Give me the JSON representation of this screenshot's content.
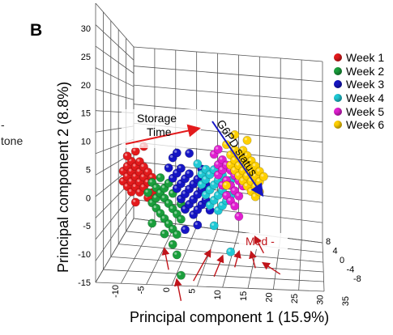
{
  "panel_label": "B",
  "side_text": [
    "-",
    "tone"
  ],
  "chart_data": {
    "type": "scatter",
    "projection": "3d",
    "xlabel": "Principal component 1 (15.9%)",
    "ylabel": "Principal component 2 (8.8%)",
    "xticks": [
      -10,
      -5,
      0,
      5,
      10,
      15,
      20,
      25,
      30,
      35
    ],
    "yticks": [
      -15,
      -10,
      -5,
      0,
      5,
      10,
      15,
      20,
      25,
      30
    ],
    "zticks": [
      8,
      4,
      0,
      -4,
      -8
    ],
    "xlim": [
      -13,
      37
    ],
    "ylim": [
      -15,
      33
    ],
    "zlim": [
      -8,
      8
    ],
    "grid": true,
    "legend_position": "right",
    "series": [
      {
        "name": "Week 1",
        "color": "#e31a1c",
        "points": [
          [
            -13,
            5
          ],
          [
            -13,
            3
          ],
          [
            -12,
            6
          ],
          [
            -12,
            2
          ],
          [
            -12,
            4
          ],
          [
            -11,
            7
          ],
          [
            -11,
            3
          ],
          [
            -11,
            5
          ],
          [
            -11,
            1
          ],
          [
            -10,
            6
          ],
          [
            -10,
            4
          ],
          [
            -10,
            2
          ],
          [
            -9,
            5
          ],
          [
            -9,
            3
          ],
          [
            -9,
            1
          ],
          [
            -9,
            7
          ],
          [
            -8,
            4
          ],
          [
            -8,
            2
          ],
          [
            -8,
            6
          ],
          [
            -7,
            3
          ],
          [
            -7,
            5
          ],
          [
            -6,
            1
          ],
          [
            -6,
            4
          ],
          [
            -12,
            8
          ],
          [
            -10,
            9
          ],
          [
            -8,
            10
          ],
          [
            -7,
            0
          ],
          [
            -10,
            -1
          ]
        ]
      },
      {
        "name": "Week 2",
        "color": "#1a9e3c",
        "points": [
          [
            -7,
            1
          ],
          [
            -6,
            3
          ],
          [
            -6,
            -1
          ],
          [
            -5,
            2
          ],
          [
            -5,
            0
          ],
          [
            -5,
            -2
          ],
          [
            -4,
            4
          ],
          [
            -4,
            1
          ],
          [
            -4,
            -3
          ],
          [
            -3,
            2
          ],
          [
            -3,
            0
          ],
          [
            -3,
            -4
          ],
          [
            -2,
            3
          ],
          [
            -2,
            -1
          ],
          [
            -2,
            -5
          ],
          [
            -1,
            1
          ],
          [
            -1,
            -2
          ],
          [
            -1,
            -6
          ],
          [
            0,
            2
          ],
          [
            0,
            -3
          ],
          [
            0,
            -7
          ],
          [
            1,
            -1
          ],
          [
            1,
            -4
          ],
          [
            1,
            0
          ],
          [
            2,
            -2
          ],
          [
            -3,
            -7
          ],
          [
            -1,
            -9
          ],
          [
            1,
            -15
          ],
          [
            -6,
            -5
          ],
          [
            0,
            -11
          ]
        ]
      },
      {
        "name": "Week 3",
        "color": "#1515c4",
        "points": [
          [
            -2,
            6
          ],
          [
            -1,
            4
          ],
          [
            -1,
            8
          ],
          [
            0,
            5
          ],
          [
            0,
            2
          ],
          [
            1,
            6
          ],
          [
            1,
            3
          ],
          [
            1,
            0
          ],
          [
            2,
            4
          ],
          [
            2,
            1
          ],
          [
            2,
            -2
          ],
          [
            3,
            5
          ],
          [
            3,
            2
          ],
          [
            3,
            -1
          ],
          [
            4,
            3
          ],
          [
            4,
            0
          ],
          [
            4,
            -3
          ],
          [
            5,
            4
          ],
          [
            5,
            1
          ],
          [
            5,
            -2
          ],
          [
            6,
            2
          ],
          [
            6,
            -1
          ],
          [
            7,
            3
          ],
          [
            7,
            0
          ],
          [
            0,
            9
          ],
          [
            3,
            9
          ],
          [
            6,
            6
          ],
          [
            2,
            -6
          ],
          [
            5,
            -5
          ],
          [
            8,
            -2
          ]
        ]
      },
      {
        "name": "Week 4",
        "color": "#1fc8d4",
        "points": [
          [
            5,
            7
          ],
          [
            6,
            5
          ],
          [
            6,
            3
          ],
          [
            7,
            6
          ],
          [
            7,
            4
          ],
          [
            7,
            1
          ],
          [
            8,
            5
          ],
          [
            8,
            2
          ],
          [
            8,
            -1
          ],
          [
            9,
            6
          ],
          [
            9,
            3
          ],
          [
            9,
            0
          ],
          [
            10,
            4
          ],
          [
            10,
            1
          ],
          [
            10,
            -2
          ],
          [
            11,
            5
          ],
          [
            11,
            2
          ],
          [
            11,
            -1
          ],
          [
            12,
            3
          ],
          [
            12,
            0
          ],
          [
            13,
            4
          ],
          [
            13,
            1
          ],
          [
            9,
            -5
          ],
          [
            13,
            -10
          ]
        ]
      },
      {
        "name": "Week 5",
        "color": "#e01fd0",
        "points": [
          [
            9,
            9
          ],
          [
            10,
            7
          ],
          [
            10,
            5
          ],
          [
            11,
            8
          ],
          [
            11,
            6
          ],
          [
            11,
            3
          ],
          [
            12,
            7
          ],
          [
            12,
            4
          ],
          [
            12,
            1
          ],
          [
            13,
            6
          ],
          [
            13,
            3
          ],
          [
            13,
            0
          ],
          [
            14,
            5
          ],
          [
            14,
            2
          ],
          [
            14,
            -1
          ],
          [
            15,
            4
          ],
          [
            15,
            1
          ],
          [
            16,
            3
          ],
          [
            10,
            10
          ],
          [
            15,
            -3
          ]
        ]
      },
      {
        "name": "Week 6",
        "color": "#ffd000",
        "points": [
          [
            12,
            11
          ],
          [
            13,
            9
          ],
          [
            13,
            7
          ],
          [
            14,
            10
          ],
          [
            14,
            8
          ],
          [
            14,
            6
          ],
          [
            15,
            9
          ],
          [
            15,
            7
          ],
          [
            15,
            5
          ],
          [
            16,
            10
          ],
          [
            16,
            8
          ],
          [
            16,
            6
          ],
          [
            16,
            4
          ],
          [
            17,
            9
          ],
          [
            17,
            7
          ],
          [
            17,
            5
          ],
          [
            17,
            3
          ],
          [
            18,
            8
          ],
          [
            18,
            6
          ],
          [
            18,
            4
          ],
          [
            18,
            2
          ],
          [
            19,
            7
          ],
          [
            19,
            5
          ],
          [
            19,
            3
          ],
          [
            19,
            1
          ],
          [
            20,
            6
          ],
          [
            20,
            4
          ],
          [
            20,
            2
          ],
          [
            14,
            13
          ],
          [
            17,
            12
          ],
          [
            21,
            5
          ],
          [
            12,
            3
          ]
        ]
      }
    ],
    "annotations": [
      {
        "text": "Storage Time",
        "color": "#e31a1c",
        "from": [
          -7,
          10
        ],
        "to": [
          15,
          12
        ]
      },
      {
        "text": "G6PD status",
        "color": "#1515c4",
        "from": [
          20,
          14
        ],
        "to": [
          30,
          -2
        ]
      },
      {
        "text": "Med -",
        "color": "#e31a1c"
      }
    ],
    "med_arrows": [
      {
        "from": [
          -2,
          -14
        ],
        "to": [
          -3,
          -10
        ]
      },
      {
        "from": [
          1,
          -20
        ],
        "to": [
          0,
          -16
        ]
      },
      {
        "from": [
          4,
          -16
        ],
        "to": [
          8,
          -10
        ]
      },
      {
        "from": [
          9,
          -15
        ],
        "to": [
          11,
          -11
        ]
      },
      {
        "from": [
          14,
          -13
        ],
        "to": [
          15,
          -10
        ]
      },
      {
        "from": [
          19,
          -13
        ],
        "to": [
          18,
          -10
        ]
      },
      {
        "from": [
          21,
          -10
        ],
        "to": [
          19,
          -7
        ]
      },
      {
        "from": [
          25,
          -14
        ],
        "to": [
          21,
          -12
        ]
      }
    ]
  }
}
